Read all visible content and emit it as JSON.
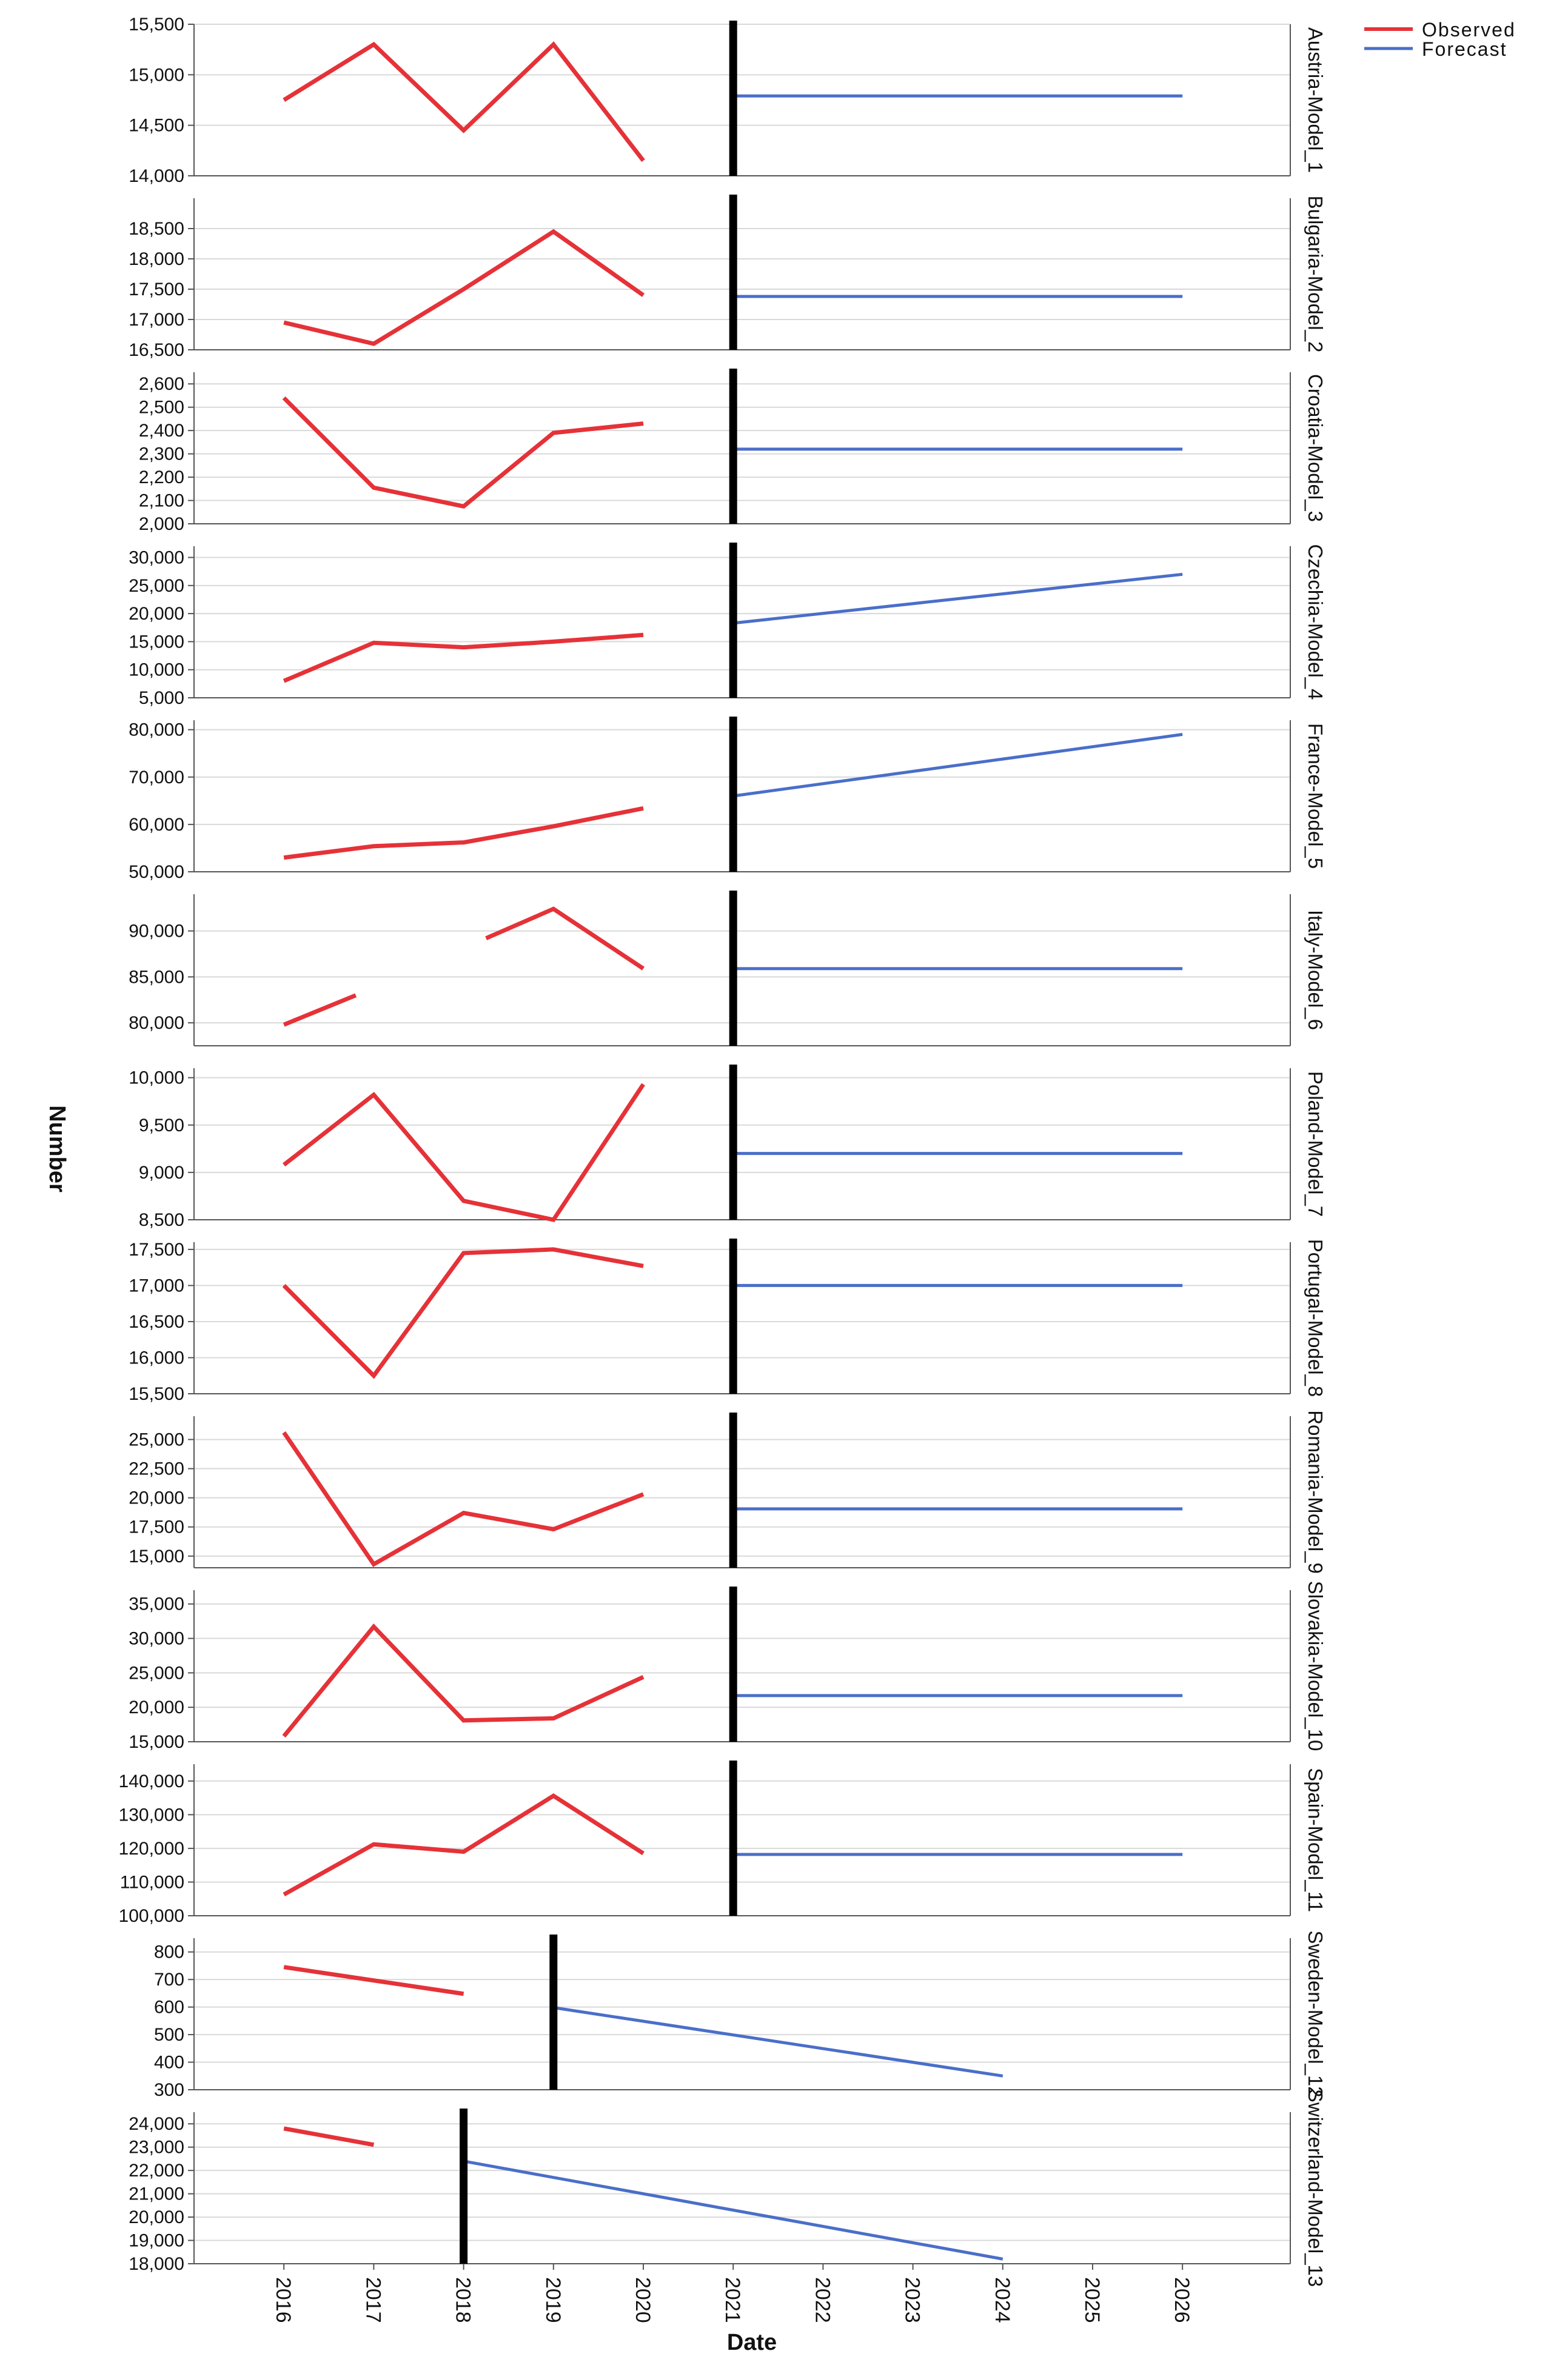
{
  "figure": {
    "xlabel": "Date",
    "ylabel": "Number",
    "legend": {
      "placement": "top-right",
      "observed_label": "Observed",
      "forecast_label": "Forecast"
    },
    "x_ticks": [
      "2016",
      "2017",
      "2018",
      "2019",
      "2020",
      "2021",
      "2022",
      "2023",
      "2024",
      "2025",
      "2026"
    ],
    "colors": {
      "observed": "#e53238",
      "forecast": "#4a6ec9",
      "cutoff": "#000000",
      "grid": "#d9d9d9",
      "panel_border": "#555555"
    }
  },
  "chart_data": {
    "type": "line",
    "x": [
      "2016",
      "2017",
      "2018",
      "2019",
      "2020",
      "2021",
      "2022",
      "2023",
      "2024",
      "2025",
      "2026"
    ],
    "xlabel": "Date",
    "ylabel": "Number",
    "grid": true,
    "legend": "top-right",
    "panels": [
      {
        "name": "Austria-Model_1",
        "ylim": [
          14000,
          15500
        ],
        "yticks": [
          14000,
          14500,
          15000,
          15500
        ],
        "ytick_labels": [
          "14,000",
          "14,500",
          "15,000",
          "15,500"
        ],
        "cutoff": 2021,
        "observed": [
          [
            [
              2016,
              14750
            ],
            [
              2017,
              15300
            ],
            [
              2018,
              14450
            ],
            [
              2019,
              15300
            ],
            [
              2020,
              14150
            ]
          ]
        ],
        "forecast": [
          [
            2021,
            14790
          ],
          [
            2026,
            14790
          ]
        ]
      },
      {
        "name": "Bulgaria-Model_2",
        "ylim": [
          16500,
          19000
        ],
        "yticks": [
          16500,
          17000,
          17500,
          18000,
          18500
        ],
        "ytick_labels": [
          "16,500",
          "17,000",
          "17,500",
          "18,000",
          "18,500"
        ],
        "cutoff": 2021,
        "observed": [
          [
            [
              2016,
              16950
            ],
            [
              2017,
              16600
            ],
            [
              2018,
              17500
            ],
            [
              2019,
              18450
            ],
            [
              2020,
              17400
            ]
          ]
        ],
        "forecast": [
          [
            2021,
            17380
          ],
          [
            2026,
            17380
          ]
        ]
      },
      {
        "name": "Croatia-Model_3",
        "ylim": [
          2000,
          2650
        ],
        "yticks": [
          2000,
          2100,
          2200,
          2300,
          2400,
          2500,
          2600
        ],
        "ytick_labels": [
          "2,000",
          "2,100",
          "2,200",
          "2,300",
          "2,400",
          "2,500",
          "2,600"
        ],
        "cutoff": 2021,
        "observed": [
          [
            [
              2016,
              2540
            ],
            [
              2017,
              2155
            ],
            [
              2018,
              2075
            ],
            [
              2019,
              2390
            ],
            [
              2020,
              2430
            ]
          ]
        ],
        "forecast": [
          [
            2021,
            2320
          ],
          [
            2026,
            2320
          ]
        ]
      },
      {
        "name": "Czechia-Model_4",
        "ylim": [
          5000,
          32000
        ],
        "yticks": [
          5000,
          10000,
          15000,
          20000,
          25000,
          30000
        ],
        "ytick_labels": [
          "5,000",
          "10,000",
          "15,000",
          "20,000",
          "25,000",
          "30,000"
        ],
        "cutoff": 2021,
        "observed": [
          [
            [
              2016,
              8000
            ],
            [
              2017,
              14800
            ],
            [
              2018,
              14000
            ],
            [
              2019,
              15000
            ],
            [
              2020,
              16200
            ]
          ]
        ],
        "forecast": [
          [
            2021,
            18300
          ],
          [
            2026,
            27000
          ]
        ]
      },
      {
        "name": "France-Model_5",
        "ylim": [
          50000,
          82000
        ],
        "yticks": [
          50000,
          60000,
          70000,
          80000
        ],
        "ytick_labels": [
          "50,000",
          "60,000",
          "70,000",
          "80,000"
        ],
        "cutoff": 2021,
        "observed": [
          [
            [
              2016,
              53000
            ],
            [
              2017,
              55400
            ],
            [
              2018,
              56200
            ],
            [
              2019,
              59600
            ],
            [
              2020,
              63400
            ]
          ]
        ],
        "forecast": [
          [
            2021,
            66000
          ],
          [
            2026,
            79000
          ]
        ]
      },
      {
        "name": "Italy-Model_6",
        "ylim": [
          77500,
          94000
        ],
        "yticks": [
          80000,
          85000,
          90000
        ],
        "ytick_labels": [
          "80,000",
          "85,000",
          "90,000"
        ],
        "cutoff": 2021,
        "observed": [
          [
            [
              2016,
              79800
            ],
            [
              2016.8,
              83000
            ]
          ],
          [
            [
              2018.25,
              89200
            ],
            [
              2019,
              92400
            ],
            [
              2020,
              85900
            ]
          ]
        ],
        "forecast": [
          [
            2021,
            85900
          ],
          [
            2026,
            85900
          ]
        ]
      },
      {
        "name": "Poland-Model_7",
        "ylim": [
          8500,
          10100
        ],
        "yticks": [
          8500,
          9000,
          9500,
          10000
        ],
        "ytick_labels": [
          "8,500",
          "9,000",
          "9,500",
          "10,000"
        ],
        "cutoff": 2021,
        "observed": [
          [
            [
              2016,
              9080
            ],
            [
              2017,
              9820
            ],
            [
              2018,
              8700
            ],
            [
              2019,
              8500
            ],
            [
              2020,
              9930
            ]
          ]
        ],
        "forecast": [
          [
            2021,
            9200
          ],
          [
            2026,
            9200
          ]
        ]
      },
      {
        "name": "Portugal-Model_8",
        "ylim": [
          15500,
          17600
        ],
        "yticks": [
          15500,
          16000,
          16500,
          17000,
          17500
        ],
        "ytick_labels": [
          "15,500",
          "16,000",
          "16,500",
          "17,000",
          "17,500"
        ],
        "cutoff": 2021,
        "observed": [
          [
            [
              2016,
              17000
            ],
            [
              2017,
              15750
            ],
            [
              2018,
              17450
            ],
            [
              2019,
              17500
            ],
            [
              2020,
              17270
            ]
          ]
        ],
        "forecast": [
          [
            2021,
            17000
          ],
          [
            2026,
            17000
          ]
        ]
      },
      {
        "name": "Romania-Model_9",
        "ylim": [
          14000,
          27000
        ],
        "yticks": [
          15000,
          17500,
          20000,
          22500,
          25000
        ],
        "ytick_labels": [
          "15,000",
          "17,500",
          "20,000",
          "22,500",
          "25,000"
        ],
        "cutoff": 2021,
        "observed": [
          [
            [
              2016,
              25600
            ],
            [
              2017,
              14300
            ],
            [
              2018,
              18700
            ],
            [
              2019,
              17300
            ],
            [
              2020,
              20300
            ]
          ]
        ],
        "forecast": [
          [
            2021,
            19050
          ],
          [
            2026,
            19050
          ]
        ]
      },
      {
        "name": "Slovakia-Model_10",
        "ylim": [
          15000,
          37000
        ],
        "yticks": [
          15000,
          20000,
          25000,
          30000,
          35000
        ],
        "ytick_labels": [
          "15,000",
          "20,000",
          "25,000",
          "30,000",
          "35,000"
        ],
        "cutoff": 2021,
        "observed": [
          [
            [
              2016,
              15800
            ],
            [
              2017,
              31700
            ],
            [
              2018,
              18100
            ],
            [
              2019,
              18400
            ],
            [
              2020,
              24400
            ]
          ]
        ],
        "forecast": [
          [
            2021,
            21700
          ],
          [
            2026,
            21700
          ]
        ]
      },
      {
        "name": "Spain-Model_11",
        "ylim": [
          100000,
          145000
        ],
        "yticks": [
          100000,
          110000,
          120000,
          130000,
          140000
        ],
        "ytick_labels": [
          "100,000",
          "110,000",
          "120,000",
          "130,000",
          "140,000"
        ],
        "cutoff": 2021,
        "observed": [
          [
            [
              2016,
              106300
            ],
            [
              2017,
              121200
            ],
            [
              2018,
              119000
            ],
            [
              2019,
              135600
            ],
            [
              2020,
              118500
            ]
          ]
        ],
        "forecast": [
          [
            2021,
            118200
          ],
          [
            2026,
            118200
          ]
        ]
      },
      {
        "name": "Sweden-Model_12",
        "ylim": [
          300,
          850
        ],
        "yticks": [
          300,
          400,
          500,
          600,
          700,
          800
        ],
        "ytick_labels": [
          "300",
          "400",
          "500",
          "600",
          "700",
          "800"
        ],
        "cutoff": 2019,
        "observed": [
          [
            [
              2016,
              745
            ],
            [
              2018,
              648
            ]
          ]
        ],
        "forecast": [
          [
            2019,
            598
          ],
          [
            2024,
            350
          ]
        ]
      },
      {
        "name": "Switzerland-Model_13",
        "ylim": [
          18000,
          24500
        ],
        "yticks": [
          18000,
          19000,
          20000,
          21000,
          22000,
          23000,
          24000
        ],
        "ytick_labels": [
          "18,000",
          "19,000",
          "20,000",
          "21,000",
          "22,000",
          "23,000",
          "24,000"
        ],
        "cutoff": 2018,
        "observed": [
          [
            [
              2016,
              23800
            ],
            [
              2017,
              23100
            ]
          ]
        ],
        "forecast": [
          [
            2018,
            22400
          ],
          [
            2024,
            18200
          ]
        ]
      }
    ]
  }
}
